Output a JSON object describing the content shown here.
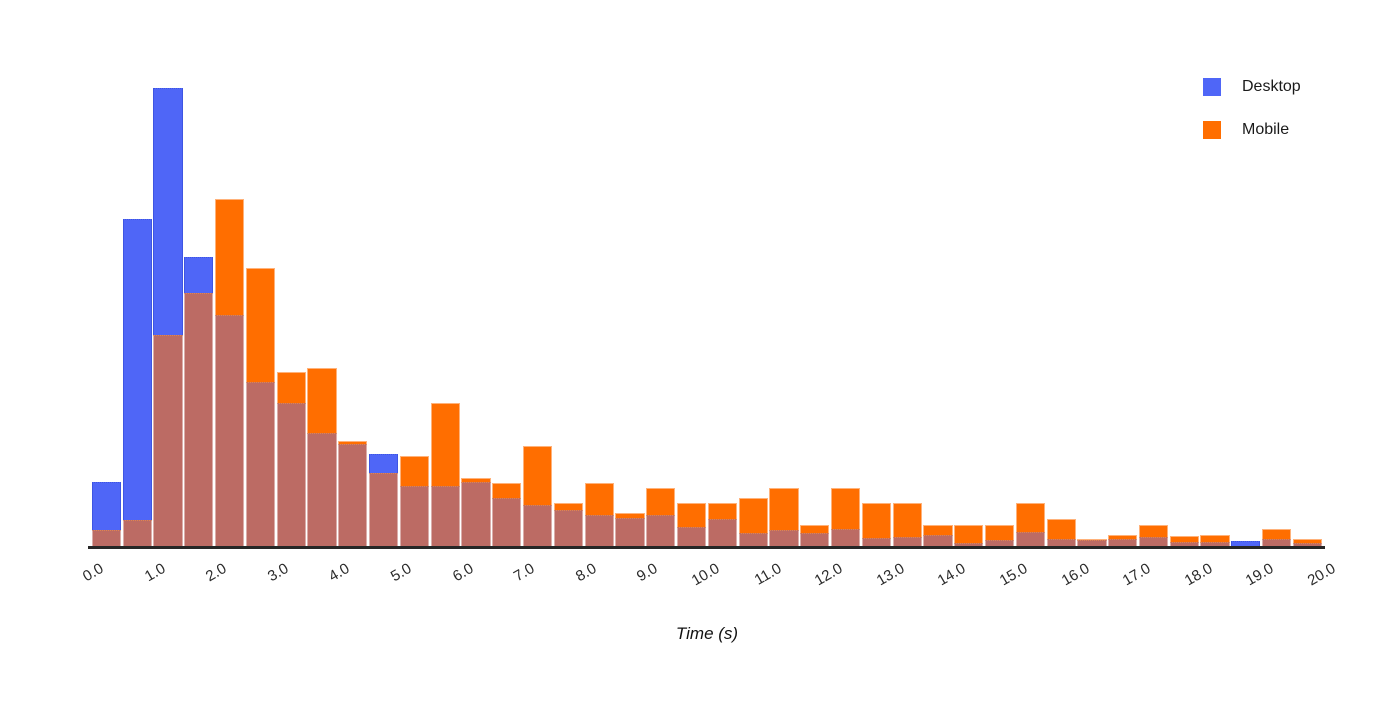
{
  "legend": {
    "items": [
      {
        "label": "Desktop",
        "color": "#4f66f7"
      },
      {
        "label": "Mobile",
        "color": "#ff6e00"
      }
    ]
  },
  "chart_data": {
    "type": "bar",
    "subtype": "overlaid-histogram",
    "title": "",
    "xlabel": "Time (s)",
    "ylabel": "",
    "x_range": [
      0.0,
      20.0
    ],
    "bin_start": 0.0,
    "bin_width": 0.5,
    "x_tick_labels": [
      "0.0",
      "1.0",
      "2.0",
      "3.0",
      "4.0",
      "5.0",
      "6.0",
      "7.0",
      "8.0",
      "9.0",
      "10.0",
      "11.0",
      "12.0",
      "13.0",
      "14.0",
      "15.0",
      "16.0",
      "17.0",
      "18.0",
      "19.0",
      "20.0"
    ],
    "y_axis_ticks_visible": false,
    "ylim": [
      0,
      100
    ],
    "y_units": "relative frequency (y-axis unlabeled, values normalized so tallest bar = 100)",
    "grid": false,
    "legend_position": "top-right",
    "overlap_color": "#bc6b64",
    "series": [
      {
        "name": "Desktop",
        "color": "#4f66f7",
        "values": [
          14.0,
          71.4,
          100.0,
          63.1,
          50.4,
          35.8,
          31.2,
          24.7,
          22.3,
          20.1,
          13.1,
          13.1,
          14.0,
          10.5,
          9.0,
          7.9,
          6.8,
          6.1,
          6.8,
          4.1,
          5.9,
          2.8,
          3.5,
          2.8,
          3.7,
          1.7,
          2.0,
          2.4,
          0.7,
          1.3,
          3.1,
          1.5,
          1.3,
          1.5,
          2.0,
          0.9,
          0.9,
          1.1,
          1.5,
          0.7
        ]
      },
      {
        "name": "Mobile",
        "color": "#ff6e00",
        "values": [
          3.5,
          5.7,
          46.1,
          55.2,
          75.8,
          60.7,
          38.0,
          38.9,
          22.9,
          15.9,
          19.7,
          31.2,
          14.8,
          13.8,
          21.8,
          9.4,
          13.8,
          7.2,
          12.7,
          9.4,
          9.4,
          10.5,
          12.7,
          4.6,
          12.7,
          9.4,
          9.4,
          4.6,
          4.6,
          4.6,
          9.4,
          5.9,
          1.5,
          2.4,
          4.6,
          2.2,
          2.4,
          0.0,
          3.7,
          1.5
        ]
      }
    ]
  }
}
